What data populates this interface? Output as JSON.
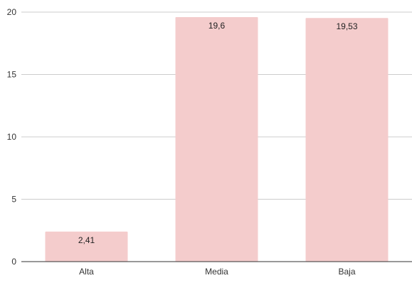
{
  "chart_data": {
    "type": "bar",
    "title": "",
    "xlabel": "",
    "ylabel": "",
    "categories": [
      "Alta",
      "Media",
      "Baja"
    ],
    "values": [
      2.41,
      19.6,
      19.53
    ],
    "data_labels": [
      "2,41",
      "19,6",
      "19,53"
    ],
    "ylim": [
      0,
      20
    ],
    "yticks": [
      0,
      5,
      10,
      15,
      20
    ],
    "ytick_labels": [
      "0",
      "5",
      "10",
      "15",
      "20"
    ],
    "grid": true,
    "legend": "none",
    "colors": {
      "bar": "#f4cccc",
      "grid": "#cccccc",
      "axis": "#333333",
      "label_text": "#222222",
      "tick_text": "#333333"
    }
  }
}
